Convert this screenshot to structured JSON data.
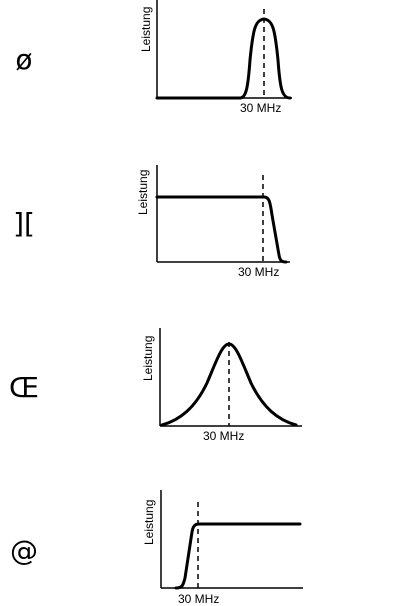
{
  "panels": [
    {
      "symbol": "ø",
      "ylabel": "Leistung",
      "xlabel": "30 MHz",
      "shape": "bandpass"
    },
    {
      "symbol": "][",
      "ylabel": "Leistung",
      "xlabel": "30 MHz",
      "shape": "lowpass"
    },
    {
      "symbol": "Œ",
      "ylabel": "Leistung",
      "xlabel": "30 MHz",
      "shape": "peak"
    },
    {
      "symbol": "@",
      "ylabel": "Leistung",
      "xlabel": "30 MHz",
      "shape": "highpass"
    }
  ]
}
